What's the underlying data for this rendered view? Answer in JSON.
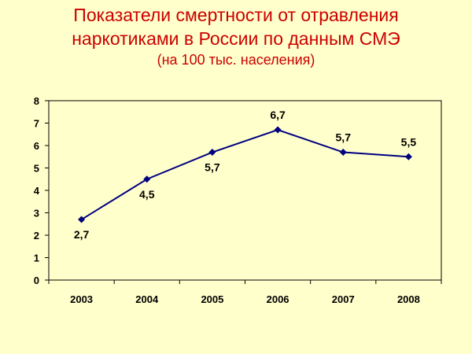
{
  "title_line1": "Показатели смертности от отравления",
  "title_line2": "наркотиками в России по данным СМЭ",
  "subtitle": "(на 100 тыс. населения)",
  "colors": {
    "background": "#FFFFCC",
    "title": "#CC0000",
    "series_line": "#000080",
    "axis": "#000000"
  },
  "chart_data": {
    "type": "line",
    "title": "Показатели смертности от отравления наркотиками в России по данным СМЭ",
    "subtitle": "(на 100 тыс. населения)",
    "categories": [
      "2003",
      "2004",
      "2005",
      "2006",
      "2007",
      "2008"
    ],
    "series": [
      {
        "values": [
          2.7,
          4.5,
          5.7,
          6.7,
          5.7,
          5.5
        ],
        "data_labels": [
          "2,7",
          "4,5",
          "5,7",
          "6,7",
          "5,7",
          "5,5"
        ],
        "label_position": [
          "below",
          "below",
          "below",
          "above",
          "above",
          "above"
        ],
        "marker": "diamond"
      }
    ],
    "ylim": [
      0,
      8
    ],
    "yticks": [
      0,
      1,
      2,
      3,
      4,
      5,
      6,
      7,
      8
    ],
    "grid": false,
    "legend": "none",
    "xlabel": "",
    "ylabel": ""
  }
}
